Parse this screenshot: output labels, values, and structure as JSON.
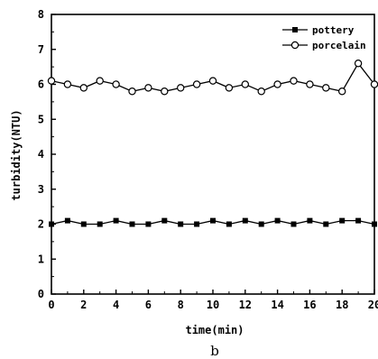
{
  "chart_data": {
    "type": "line",
    "xlabel": "time(min)",
    "ylabel": "turbidity(NTU)",
    "xlim": [
      0,
      20
    ],
    "ylim": [
      0,
      8
    ],
    "x_ticks": [
      "0",
      "2",
      "4",
      "6",
      "8",
      "10",
      "12",
      "14",
      "16",
      "18",
      "20"
    ],
    "y_ticks": [
      "0",
      "1",
      "2",
      "3",
      "4",
      "5",
      "6",
      "7",
      "8"
    ],
    "grid": false,
    "legend_position": "top-right",
    "x": [
      0,
      1,
      2,
      3,
      4,
      5,
      6,
      7,
      8,
      9,
      10,
      11,
      12,
      13,
      14,
      15,
      16,
      17,
      18,
      19,
      20
    ],
    "series": [
      {
        "name": "pottery",
        "marker": "filled-square",
        "values": [
          2.0,
          2.1,
          2.0,
          2.0,
          2.1,
          2.0,
          2.0,
          2.1,
          2.0,
          2.0,
          2.1,
          2.0,
          2.1,
          2.0,
          2.1,
          2.0,
          2.1,
          2.0,
          2.1,
          2.1,
          2.0
        ]
      },
      {
        "name": "porcelain",
        "marker": "open-circle",
        "values": [
          6.1,
          6.0,
          5.9,
          6.1,
          6.0,
          5.8,
          5.9,
          5.8,
          5.9,
          6.0,
          6.1,
          5.9,
          6.0,
          5.8,
          6.0,
          6.1,
          6.0,
          5.9,
          5.8,
          6.6,
          6.0
        ]
      }
    ],
    "caption": "b"
  }
}
